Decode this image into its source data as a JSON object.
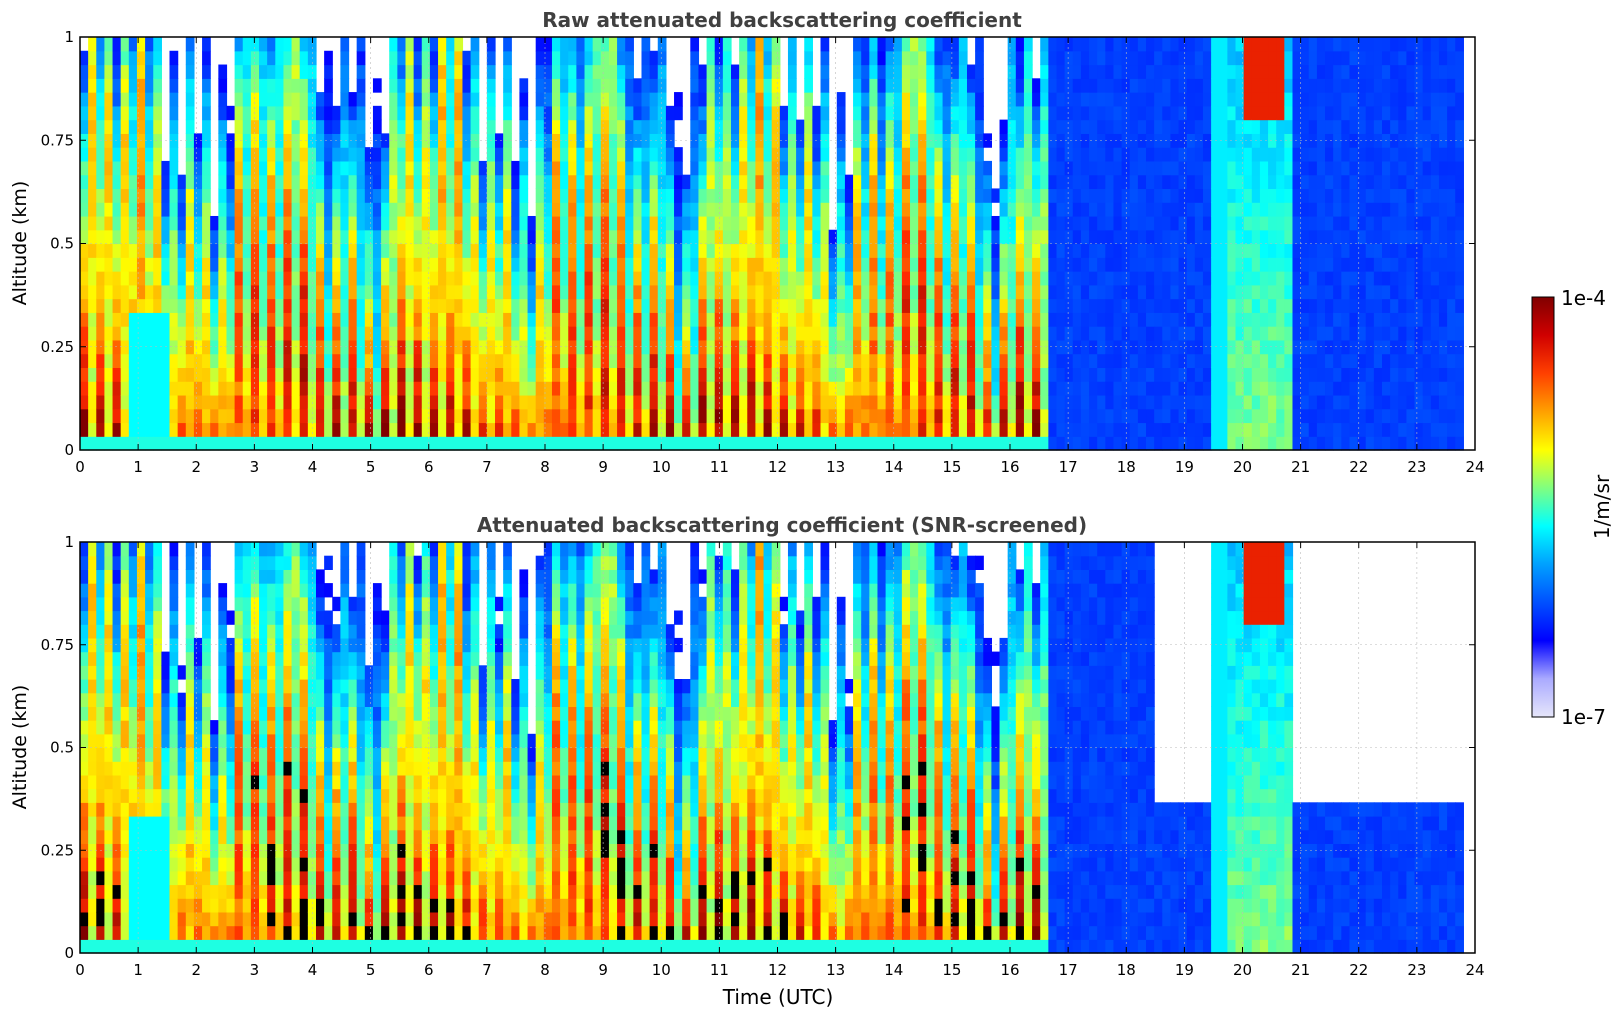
{
  "colorbar": {
    "max_label": "1e-4",
    "min_label": "1e-7",
    "unit_label": "1/m/sr",
    "colors": [
      "#e6e6fa",
      "#aaaaff",
      "#0000ff",
      "#0050ff",
      "#00a0ff",
      "#00ffff",
      "#80ff80",
      "#ffff00",
      "#ffa000",
      "#ff4000",
      "#d00000",
      "#800000"
    ]
  },
  "xlabel": "Time (UTC)",
  "chart_data": [
    {
      "type": "heatmap",
      "title": "Raw attenuated backscattering coefficient",
      "xlabel": "",
      "ylabel": "Altitude (km)",
      "xlim": [
        0,
        24
      ],
      "ylim": [
        0,
        1
      ],
      "xticks": [
        "0",
        "1",
        "2",
        "3",
        "4",
        "5",
        "6",
        "7",
        "8",
        "9",
        "10",
        "11",
        "12",
        "13",
        "14",
        "15",
        "16",
        "17",
        "18",
        "19",
        "20",
        "21",
        "22",
        "23",
        "24"
      ],
      "yticks": [
        "0",
        "0.25",
        "0.5",
        "0.75",
        "1"
      ],
      "data_end_hour": 23.8,
      "colorscale": "log",
      "vmin": 1e-07,
      "vmax": 0.0001,
      "grid": true
    },
    {
      "type": "heatmap",
      "title": "Attenuated backscattering coefficient (SNR-screened)",
      "xlabel": "Time (UTC)",
      "ylabel": "Altitude (km)",
      "xlim": [
        0,
        24
      ],
      "ylim": [
        0,
        1
      ],
      "xticks": [
        "0",
        "1",
        "2",
        "3",
        "4",
        "5",
        "6",
        "7",
        "8",
        "9",
        "10",
        "11",
        "12",
        "13",
        "14",
        "15",
        "16",
        "17",
        "18",
        "19",
        "20",
        "21",
        "22",
        "23",
        "24"
      ],
      "yticks": [
        "0",
        "0.25",
        "0.5",
        "0.75",
        "1"
      ],
      "data_end_hour": 23.8,
      "colorscale": "log",
      "vmin": 1e-07,
      "vmax": 0.0001,
      "grid": true
    }
  ]
}
